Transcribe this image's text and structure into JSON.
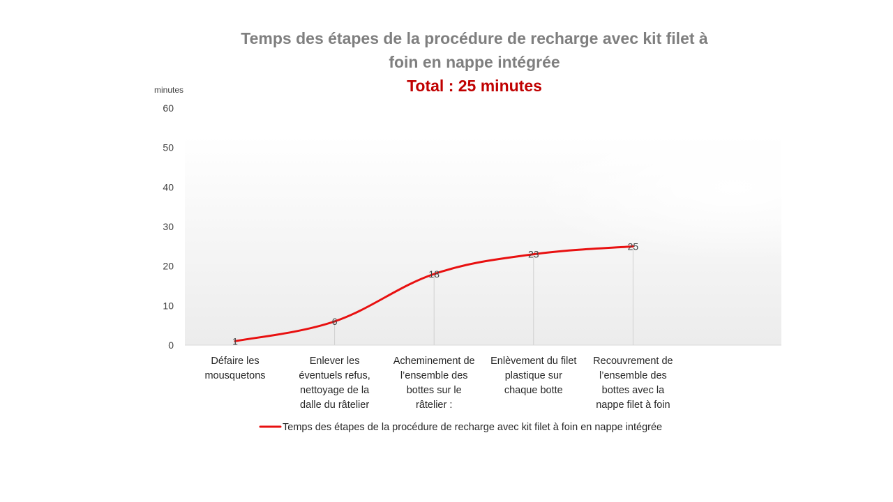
{
  "chart_data": {
    "type": "line",
    "title_line1": "Temps des étapes de la procédure de recharge avec kit filet à",
    "title_line2": "foin en nappe intégrée",
    "subtitle": "Total : 25 minutes",
    "ylabel": "minutes",
    "ylim": [
      0,
      60
    ],
    "yticks": [
      0,
      10,
      20,
      30,
      40,
      50,
      60
    ],
    "categories": [
      [
        "Défaire les",
        "mousquetons"
      ],
      [
        "Enlever les",
        "éventuels refus,",
        "nettoyage de la",
        "dalle du râtelier"
      ],
      [
        "Acheminement de",
        "l’ensemble des",
        "bottes sur le",
        "râtelier :"
      ],
      [
        "Enlèvement du filet",
        "plastique sur",
        "chaque botte"
      ],
      [
        "Recouvrement de",
        "l’ensemble des",
        "bottes avec la",
        "nappe filet à foin"
      ]
    ],
    "series": [
      {
        "name": "Temps des étapes de la procédure de recharge avec kit filet à foin en nappe intégrée",
        "values": [
          1,
          6,
          18,
          23,
          25
        ],
        "color": "#e81010"
      }
    ],
    "legend_position": "bottom",
    "grid": false,
    "drop_lines": true,
    "plot_background": "gradient-light-gray"
  }
}
